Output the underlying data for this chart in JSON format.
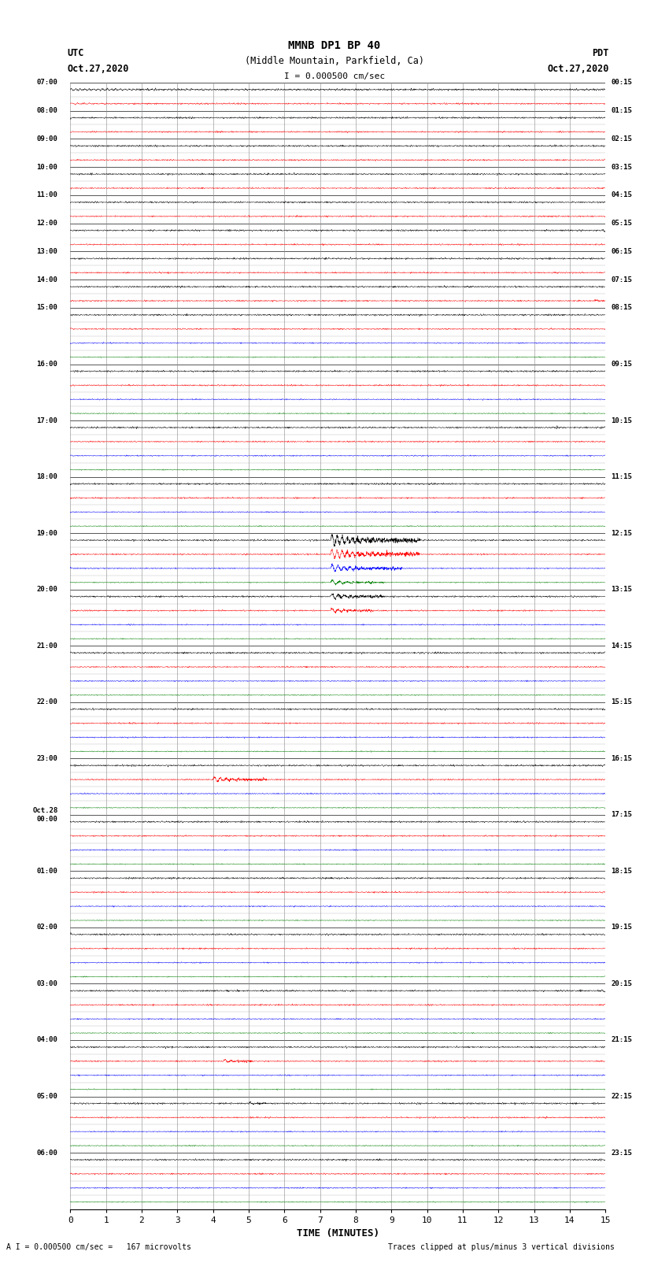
{
  "title_line1": "MMNB DP1 BP 40",
  "title_line2": "(Middle Mountain, Parkfield, Ca)",
  "scale_text": "I = 0.000500 cm/sec",
  "utc_label": "UTC",
  "utc_date": "Oct.27,2020",
  "pdt_label": "PDT",
  "pdt_date": "Oct.27,2020",
  "xlabel": "TIME (MINUTES)",
  "bottom_left": "A I = 0.000500 cm/sec =   167 microvolts",
  "bottom_right": "Traces clipped at plus/minus 3 vertical divisions",
  "xmin": 0,
  "xmax": 15,
  "fig_width": 8.5,
  "fig_height": 16.13,
  "dpi": 100,
  "background_color": "white",
  "grid_color": "#888888",
  "row_specs": [
    {
      "time": "07:00",
      "pdt": "00:15",
      "n_traces": 2
    },
    {
      "time": "08:00",
      "pdt": "01:15",
      "n_traces": 2
    },
    {
      "time": "09:00",
      "pdt": "02:15",
      "n_traces": 2
    },
    {
      "time": "10:00",
      "pdt": "03:15",
      "n_traces": 2
    },
    {
      "time": "11:00",
      "pdt": "04:15",
      "n_traces": 2
    },
    {
      "time": "12:00",
      "pdt": "05:15",
      "n_traces": 2
    },
    {
      "time": "13:00",
      "pdt": "06:15",
      "n_traces": 2
    },
    {
      "time": "14:00",
      "pdt": "07:15",
      "n_traces": 2
    },
    {
      "time": "15:00",
      "pdt": "08:15",
      "n_traces": 4
    },
    {
      "time": "16:00",
      "pdt": "09:15",
      "n_traces": 4
    },
    {
      "time": "17:00",
      "pdt": "10:15",
      "n_traces": 4
    },
    {
      "time": "18:00",
      "pdt": "11:15",
      "n_traces": 4
    },
    {
      "time": "19:00",
      "pdt": "12:15",
      "n_traces": 4
    },
    {
      "time": "20:00",
      "pdt": "13:15",
      "n_traces": 4
    },
    {
      "time": "21:00",
      "pdt": "14:15",
      "n_traces": 4
    },
    {
      "time": "22:00",
      "pdt": "15:15",
      "n_traces": 4
    },
    {
      "time": "23:00",
      "pdt": "16:15",
      "n_traces": 4
    },
    {
      "time": "Oct.28\n00:00",
      "pdt": "17:15",
      "n_traces": 4
    },
    {
      "time": "01:00",
      "pdt": "18:15",
      "n_traces": 4
    },
    {
      "time": "02:00",
      "pdt": "19:15",
      "n_traces": 4
    },
    {
      "time": "03:00",
      "pdt": "20:15",
      "n_traces": 4
    },
    {
      "time": "04:00",
      "pdt": "21:15",
      "n_traces": 4
    },
    {
      "time": "05:00",
      "pdt": "22:15",
      "n_traces": 4
    },
    {
      "time": "06:00",
      "pdt": "23:15",
      "n_traces": 4
    }
  ]
}
